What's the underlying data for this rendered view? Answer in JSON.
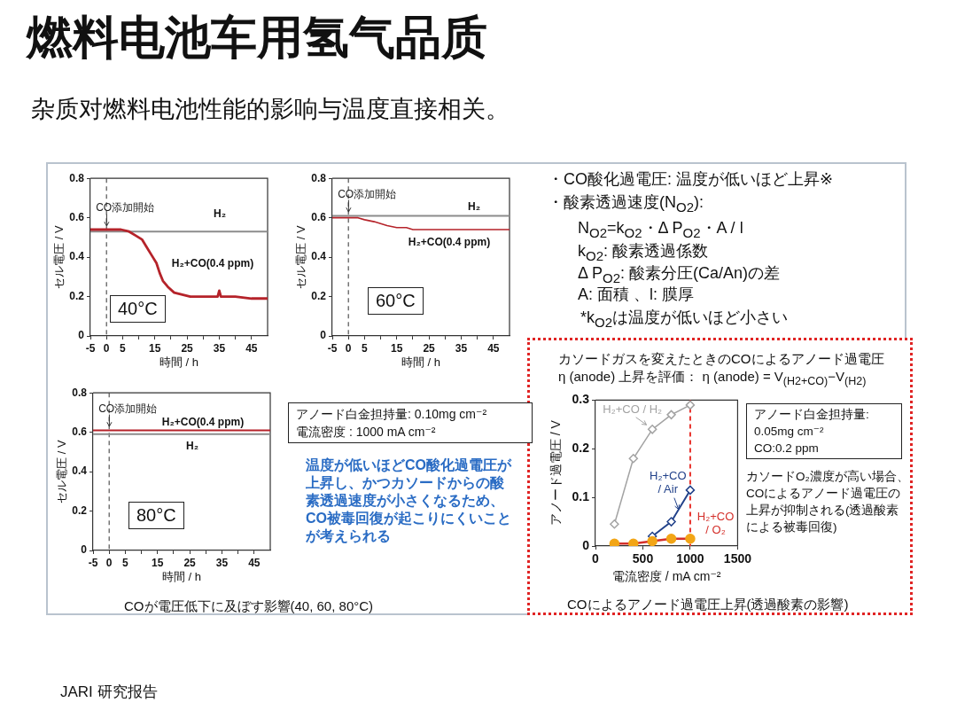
{
  "chart_data": [
    {
      "type": "other",
      "title": "燃料电池车用氢气品质",
      "subtitle": "杂质对燃料电池性能的影响与温度直接相关。",
      "annotations": [
        "JARI 研究报告"
      ]
    },
    {
      "type": "line",
      "xlabel": "時間 / h",
      "ylabel": "セル電圧 / V",
      "xlim": [
        -5,
        50
      ],
      "xticks": [
        -5,
        0,
        5,
        {
          "value": 10,
          "label": null
        },
        15,
        {
          "value": 20,
          "label": null
        },
        25,
        {
          "value": 30,
          "label": null
        },
        35,
        {
          "value": 40,
          "label": null
        },
        45
      ],
      "ylim": [
        0,
        0.8
      ],
      "yticks": [
        0,
        0.2,
        0.4,
        0.6,
        0.8
      ],
      "marker": "none",
      "annotations": [
        "40°C"
      ],
      "ref_lines": [
        {
          "axis": "x",
          "value": 0,
          "label": "CO添加開始",
          "line_style": "dashed",
          "color": "#444444"
        }
      ],
      "series": [
        {
          "name": "H₂",
          "color": "#8c8c8c",
          "x": [
            -5,
            0,
            10,
            20,
            30,
            40,
            50
          ],
          "values": [
            0.53,
            0.53,
            0.53,
            0.53,
            0.53,
            0.53,
            0.53
          ]
        },
        {
          "name": "H₂+CO(0.4 ppm)",
          "color": "#b5232a",
          "x": [
            -5,
            0,
            4.5,
            7,
            9,
            11,
            12.5,
            14,
            15.5,
            16.5,
            17.5,
            19,
            21,
            23.5,
            26,
            30,
            34.5,
            35,
            35.5,
            40,
            45,
            50
          ],
          "values": [
            0.54,
            0.54,
            0.54,
            0.53,
            0.51,
            0.49,
            0.45,
            0.41,
            0.37,
            0.32,
            0.28,
            0.25,
            0.22,
            0.21,
            0.2,
            0.2,
            0.2,
            0.23,
            0.2,
            0.2,
            0.19,
            0.19
          ]
        }
      ]
    },
    {
      "type": "line",
      "xlabel": "時間 / h",
      "ylabel": "セル電圧 / V",
      "xlim": [
        -5,
        50
      ],
      "xticks": [
        -5,
        0,
        5,
        {
          "value": 10,
          "label": null
        },
        15,
        {
          "value": 20,
          "label": null
        },
        25,
        {
          "value": 30,
          "label": null
        },
        35,
        {
          "value": 40,
          "label": null
        },
        45
      ],
      "ylim": [
        0,
        0.8
      ],
      "yticks": [
        0,
        0.2,
        0.4,
        0.6,
        0.8
      ],
      "marker": "none",
      "annotations": [
        "60°C"
      ],
      "ref_lines": [
        {
          "axis": "x",
          "value": 0,
          "label": "CO添加開始",
          "line_style": "dashed",
          "color": "#444444"
        }
      ],
      "series": [
        {
          "name": "H₂",
          "color": "#8c8c8c",
          "x": [
            -5,
            0,
            10,
            20,
            30,
            40,
            50
          ],
          "values": [
            0.61,
            0.61,
            0.61,
            0.61,
            0.61,
            0.61,
            0.61
          ]
        },
        {
          "name": "H₂+CO(0.4 ppm)",
          "color": "#b5232a",
          "x": [
            -5,
            0,
            3,
            5,
            8,
            10,
            12,
            15,
            18,
            20,
            25,
            30,
            35,
            40,
            45,
            50
          ],
          "values": [
            0.6,
            0.6,
            0.6,
            0.59,
            0.58,
            0.57,
            0.56,
            0.55,
            0.55,
            0.54,
            0.54,
            0.54,
            0.54,
            0.54,
            0.54,
            0.54
          ]
        }
      ]
    },
    {
      "type": "other",
      "annotations": [
        "・CO酸化過電圧: 温度が低いほど上昇※",
        "・酸素透過速度(N$_{O2}$):",
        "N$_{O2}$=k$_{O2}$・Δ P$_{O2}$・A / l",
        "k$_{O2}$: 酸素透過係数",
        "Δ P$_{O2}$: 酸素分圧(Ca/An)の差",
        "A: 面積 、l: 膜厚",
        "*k$_{O2}$は温度が低いほど小さい"
      ]
    },
    {
      "type": "line",
      "xlabel": "時間 / h",
      "ylabel": "セル電圧 / V",
      "xlim": [
        -5,
        50
      ],
      "xticks": [
        -5,
        0,
        5,
        {
          "value": 10,
          "label": null
        },
        15,
        {
          "value": 20,
          "label": null
        },
        25,
        {
          "value": 30,
          "label": null
        },
        35,
        {
          "value": 40,
          "label": null
        },
        45
      ],
      "ylim": [
        0,
        0.8
      ],
      "yticks": [
        0,
        0.2,
        0.4,
        0.6,
        0.8
      ],
      "marker": "none",
      "annotations": [
        "80°C",
        "COが電圧低下に及ぼす影響(40, 60, 80°C)"
      ],
      "ref_lines": [
        {
          "axis": "x",
          "value": 0,
          "label": "CO添加開始",
          "line_style": "dashed",
          "color": "#444444"
        }
      ],
      "series": [
        {
          "name": "H₂",
          "color": "#8c8c8c",
          "x": [
            -5,
            0,
            10,
            20,
            30,
            40,
            50
          ],
          "values": [
            0.59,
            0.59,
            0.59,
            0.59,
            0.59,
            0.59,
            0.59
          ]
        },
        {
          "name": "H₂+CO(0.4 ppm)",
          "color": "#b5232a",
          "x": [
            -5,
            0,
            10,
            20,
            30,
            40,
            50
          ],
          "values": [
            0.61,
            0.61,
            0.61,
            0.61,
            0.61,
            0.61,
            0.61
          ]
        }
      ]
    },
    {
      "type": "other",
      "annotations": [
        "アノード白金担持量: 0.10mg cm⁻²\n電流密度 : 1000 mA cm⁻²",
        "温度が低いほどCO酸化過電圧が上昇し、かつカソードからの酸素透過速度が小さくなるため、CO被毒回復が起こりにくいことが考えられる"
      ]
    },
    {
      "type": "line",
      "title": "カソードガスを変えたときのCOによるアノード過電圧\nη (anode) 上昇を評価： η (anode) = V$_{(H2+CO)}$−V$_{(H2)}$",
      "xlabel": "電流密度 / mA cm⁻²",
      "ylabel": "アノード過電圧 / V",
      "xlim": [
        0,
        1500
      ],
      "xticks": [
        0,
        500,
        1000,
        1500
      ],
      "ylim": [
        0,
        0.3
      ],
      "yticks": [
        0,
        0.1,
        0.2,
        0.3
      ],
      "x": [
        200,
        400,
        600,
        800,
        1000
      ],
      "ref_lines": [
        {
          "axis": "x",
          "value": 1000,
          "line_style": "dashed",
          "color": "#e8322c"
        }
      ],
      "annotations": [
        "アノード白金担持量:\n0.05mg cm⁻²\nCO:0.2 ppm",
        "カソードO₂濃度が高い場合、COによるアノード過電圧の上昇が抑制される(透過酸素による被毒回復)",
        "COによるアノード過電圧上昇(透過酸素の影響)"
      ],
      "series": [
        {
          "name": "H₂+CO / H₂",
          "color": "#a3a3a3",
          "marker": "diamond",
          "values": [
            0.045,
            0.18,
            0.24,
            0.27,
            0.29
          ]
        },
        {
          "name": "H₂+CO / Air",
          "color": "#22428a",
          "marker": "diamond",
          "values": [
            null,
            null,
            0.02,
            0.05,
            0.115
          ]
        },
        {
          "name": "H₂+CO / O₂",
          "color": "#d4302b",
          "colors": [
            "#f2a516",
            "#f2a516",
            "#f2a516",
            "#f2a516",
            "#f2a516"
          ],
          "marker": "circle",
          "values": [
            0.005,
            0.005,
            0.01,
            0.015,
            0.015
          ]
        }
      ]
    }
  ]
}
